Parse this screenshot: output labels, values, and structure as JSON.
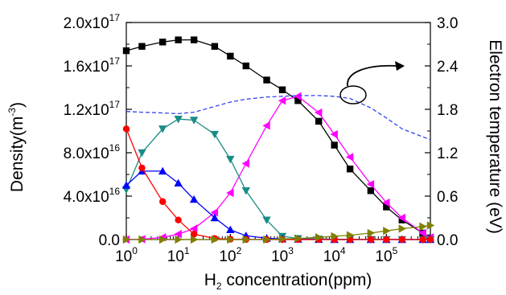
{
  "chart_data": {
    "type": "line",
    "xlabel": {
      "base": "H",
      "sub": "2",
      "rest": " concentration(ppm)"
    },
    "ylabel_left": {
      "base": "Density(m",
      "sup": "-3",
      "rest": ")"
    },
    "ylabel_right": "Electron temperature (eV)",
    "x_scale": "log",
    "xlim": [
      1,
      700000
    ],
    "ylim_left": [
      0,
      2e+17
    ],
    "ylim_right": [
      0,
      3.0
    ],
    "x_ticks": [
      {
        "value": 1,
        "base": "10",
        "exp": "0"
      },
      {
        "value": 10,
        "base": "10",
        "exp": "1"
      },
      {
        "value": 100,
        "base": "10",
        "exp": "2"
      },
      {
        "value": 1000,
        "base": "10",
        "exp": "3"
      },
      {
        "value": 10000,
        "base": "10",
        "exp": "4"
      },
      {
        "value": 100000,
        "base": "10",
        "exp": "5"
      }
    ],
    "y_ticks_left": [
      {
        "value": 0,
        "label": "0.0",
        "exp": ""
      },
      {
        "value": 4e+16,
        "label": "4.0x10",
        "exp": "16"
      },
      {
        "value": 8e+16,
        "label": "8.0x10",
        "exp": "16"
      },
      {
        "value": 1.2e+17,
        "label": "1.2x10",
        "exp": "17"
      },
      {
        "value": 1.6e+17,
        "label": "1.6x10",
        "exp": "17"
      },
      {
        "value": 2e+17,
        "label": "2.0x10",
        "exp": "17"
      }
    ],
    "y_ticks_right": [
      {
        "value": 0.0,
        "label": "0.0"
      },
      {
        "value": 0.6,
        "label": "0.6"
      },
      {
        "value": 1.2,
        "label": "1.2"
      },
      {
        "value": 1.8,
        "label": "1.8"
      },
      {
        "value": 2.4,
        "label": "2.4"
      },
      {
        "value": 3.0,
        "label": "3.0"
      }
    ],
    "x": [
      1,
      2,
      5,
      10,
      20,
      50,
      100,
      200,
      500,
      1000,
      2000,
      5000,
      10000,
      20000,
      50000,
      100000,
      200000,
      500000,
      700000
    ],
    "series": [
      {
        "color": "#000000",
        "marker": "square",
        "axis": "left",
        "values": [
          1.74e+17,
          1.78e+17,
          1.82e+17,
          1.84e+17,
          1.84e+17,
          1.78e+17,
          1.69e+17,
          1.6e+17,
          1.47e+17,
          1.38e+17,
          1.28e+17,
          1.09e+17,
          8.7e+16,
          6.5e+16,
          4.5e+16,
          3e+16,
          1.8e+16,
          6000000000000000.0,
          1500000000000000.0
        ]
      },
      {
        "color": "#ff00ff",
        "marker": "triangle-left",
        "axis": "left",
        "values": [
          0.0,
          300000000000000.0,
          2000000000000000.0,
          5000000000000000.0,
          1e+16,
          2.5e+16,
          4.3e+16,
          7e+16,
          1.05e+17,
          1.28e+17,
          1.32e+17,
          1.17e+17,
          9.7e+16,
          7.6e+16,
          5.1e+16,
          3.4e+16,
          2e+16,
          6000000000000000.0,
          2000000000000000.0
        ]
      },
      {
        "color": "#1a8c86",
        "marker": "triangle-down",
        "axis": "left",
        "values": [
          4.6e+16,
          8e+16,
          1.02e+17,
          1.11e+17,
          1.1e+17,
          9.7e+16,
          7.4e+16,
          4.5e+16,
          1.8e+16,
          3000000000000000.0,
          1000000000000000.0,
          500000000000000.0,
          300000000000000.0,
          200000000000000.0,
          100000000000000.0,
          100000000000000.0,
          0.0,
          0.0,
          0.0
        ]
      },
      {
        "color": "#0000ff",
        "marker": "triangle-up",
        "axis": "left",
        "values": [
          5e+16,
          6.3e+16,
          6.3e+16,
          5.2e+16,
          3.7e+16,
          2e+16,
          9000000000000000.0,
          3500000000000000.0,
          1200000000000000.0,
          500000000000000.0,
          200000000000000.0,
          100000000000000.0,
          0.0,
          0.0,
          0.0,
          0.0,
          0.0,
          0.0,
          0.0
        ]
      },
      {
        "color": "#ff0000",
        "marker": "circle",
        "axis": "left",
        "values": [
          1.02e+17,
          6.6e+16,
          3.5e+16,
          1.8e+16,
          5000000000000000.0,
          1000000000000000.0,
          300000000000000.0,
          100000000000000.0,
          0.0,
          0.0,
          0.0,
          0.0,
          0.0,
          0.0,
          0.0,
          0.0,
          0.0,
          0.0,
          0.0
        ]
      },
      {
        "color": "#808000",
        "marker": "triangle-right",
        "axis": "left",
        "values": [
          0.0,
          0.0,
          0.0,
          0.0,
          0.0,
          0.0,
          0.0,
          0.0,
          0.0,
          500000000000000.0,
          1000000000000000.0,
          2000000000000000.0,
          3000000000000000.0,
          4000000000000000.0,
          6000000000000000.0,
          8000000000000000.0,
          1e+16,
          1.2e+16,
          1.3e+16
        ]
      },
      {
        "color": "#3344ee",
        "marker": "none",
        "dashed": true,
        "axis": "right",
        "values": [
          1.77,
          1.76,
          1.75,
          1.74,
          1.76,
          1.84,
          1.9,
          1.94,
          1.97,
          1.98,
          1.99,
          1.99,
          1.98,
          1.95,
          1.82,
          1.68,
          1.53,
          1.42,
          1.38
        ]
      }
    ],
    "annotation": "curved arrow from the electron temperature curve pointing to the right axis",
    "grid": false
  }
}
